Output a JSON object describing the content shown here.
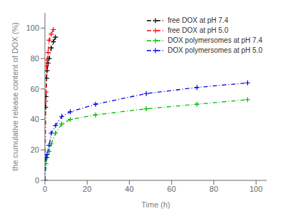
{
  "chart_data": {
    "type": "line",
    "xlabel": "Time (h)",
    "ylabel": "the cumulative release content of DOX (%)",
    "xlim": [
      0,
      105
    ],
    "ylim": [
      0,
      110
    ],
    "xticks": [
      0,
      20,
      40,
      60,
      80,
      100
    ],
    "yticks": [
      0,
      20,
      40,
      60,
      80,
      100
    ],
    "grid": false,
    "legend": "upper right",
    "marker": "plus",
    "line_style": "dashdot",
    "series": [
      {
        "name": "free DOX at pH 7.4",
        "color": "#000000",
        "x": [
          0,
          0.3,
          0.5,
          0.8,
          1.0,
          1.5,
          2.0,
          3.0,
          4.0,
          5.0
        ],
        "values": [
          0,
          48,
          55,
          67,
          72,
          77,
          80,
          87,
          91,
          94
        ]
      },
      {
        "name": "free DOX at pH 5.0",
        "color": "#ff0000",
        "x": [
          0,
          0.3,
          0.5,
          0.8,
          1.0,
          1.5,
          2.0,
          3.0,
          4.0
        ],
        "values": [
          0,
          52,
          58,
          75,
          79,
          84,
          92,
          96,
          99
        ]
      },
      {
        "name": "DOX polymersomes at pH 7.4",
        "color": "#00bb00",
        "x": [
          0,
          0.5,
          1,
          2,
          3,
          5,
          8,
          12,
          24,
          48,
          72,
          96
        ],
        "values": [
          0,
          11,
          15,
          19,
          24,
          31,
          37,
          40,
          43,
          47,
          50,
          53
        ]
      },
      {
        "name": "DOX polymersomes at pH 5.0",
        "color": "#0000ee",
        "x": [
          0,
          0.5,
          1,
          2,
          3,
          5,
          8,
          12,
          24,
          48,
          72,
          96
        ],
        "values": [
          0,
          15,
          17,
          23,
          31,
          36,
          42,
          45,
          50,
          57,
          61,
          64
        ]
      }
    ]
  }
}
